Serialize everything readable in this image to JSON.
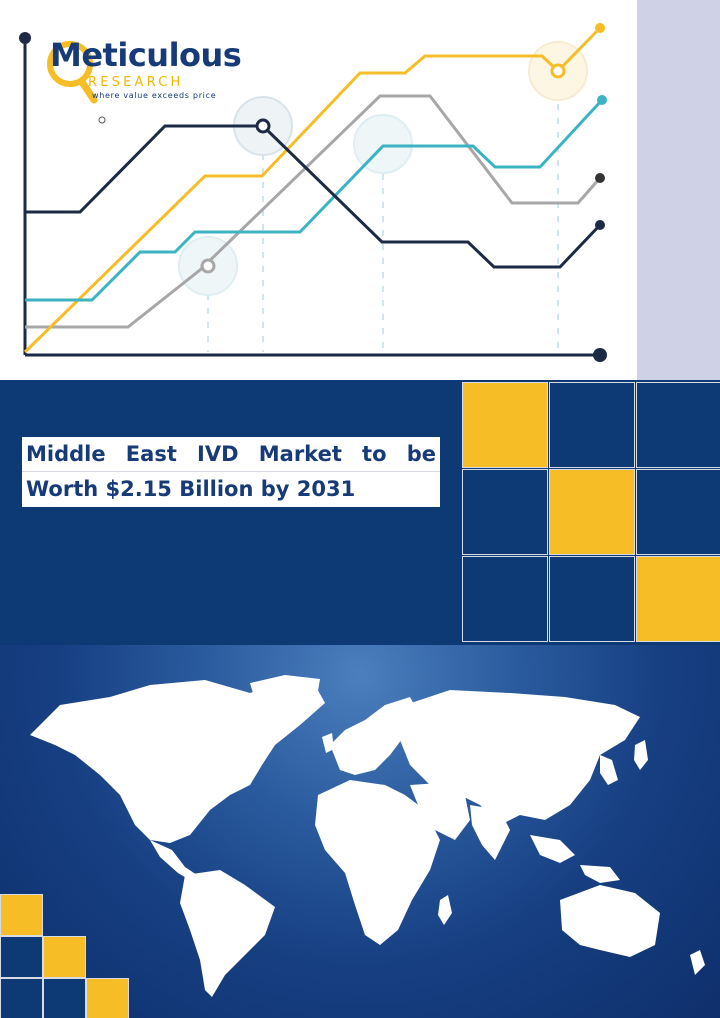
{
  "brand": {
    "name": "Meticulous",
    "sub": "RESEARCH",
    "tagline": "where value exceeds price"
  },
  "headline": {
    "line1": "Middle East IVD Market to be",
    "line2": "Worth $2.15 Billion by 2031"
  },
  "colors": {
    "navy": "#0d3a75",
    "gold": "#f6bd27",
    "teal": "#3bb3c3",
    "gray": "#a7a7a7",
    "dark_line": "#1c2a45",
    "lavender": "#cfd2e6"
  }
}
